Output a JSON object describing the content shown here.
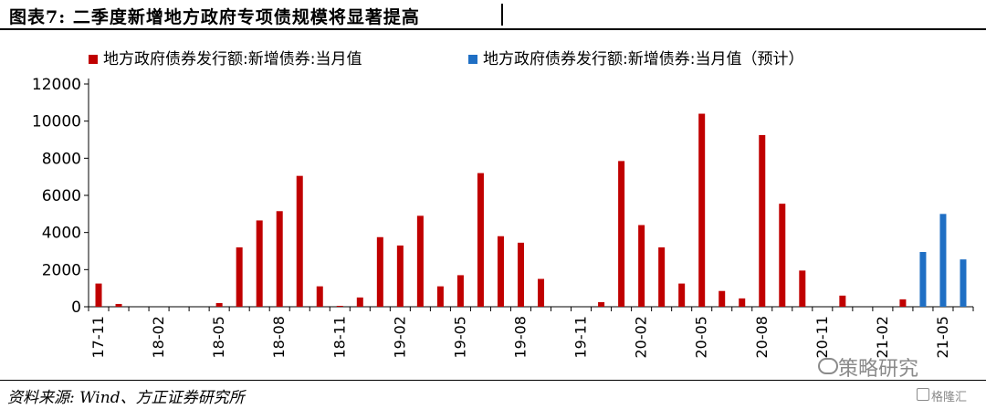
{
  "header": {
    "title": "图表7:   二季度新增地方政府专项债规模将显著提高"
  },
  "footer": {
    "source": "资料来源: Wind、方正证券研究所",
    "watermark": "策略研究",
    "brand": "格隆汇"
  },
  "chart_data": {
    "type": "bar",
    "colors": {
      "actual": "#c00000",
      "forecast": "#1f6fc4"
    },
    "ylim": [
      0,
      12000
    ],
    "yticks": [
      0,
      2000,
      4000,
      6000,
      8000,
      10000,
      12000
    ],
    "xtick_labels": [
      "17-11",
      "18-02",
      "18-05",
      "18-08",
      "18-11",
      "19-02",
      "19-05",
      "19-08",
      "19-11",
      "20-02",
      "20-05",
      "20-08",
      "20-11",
      "21-02",
      "21-05"
    ],
    "legend_position": "top",
    "grid": false,
    "series": [
      {
        "name": "地方政府债券发行额:新增债券:当月值",
        "color": "#c00000",
        "values": [
          1250,
          150,
          0,
          0,
          0,
          0,
          200,
          3200,
          4650,
          5150,
          7050,
          1100,
          50,
          500,
          3750,
          3300,
          4900,
          1100,
          1700,
          7200,
          3800,
          3450,
          1500,
          0,
          0,
          250,
          7850,
          4400,
          3200,
          1250,
          10400,
          850,
          450,
          9250,
          5550,
          1950,
          0,
          600,
          0,
          0,
          400,
          0,
          0,
          0
        ]
      },
      {
        "name": "地方政府债券发行额:新增债券:当月值（预计）",
        "color": "#1f6fc4",
        "values": [
          0,
          0,
          0,
          0,
          0,
          0,
          0,
          0,
          0,
          0,
          0,
          0,
          0,
          0,
          0,
          0,
          0,
          0,
          0,
          0,
          0,
          0,
          0,
          0,
          0,
          0,
          0,
          0,
          0,
          0,
          0,
          0,
          0,
          0,
          0,
          0,
          0,
          0,
          0,
          0,
          0,
          2950,
          5000,
          2550
        ]
      }
    ]
  }
}
